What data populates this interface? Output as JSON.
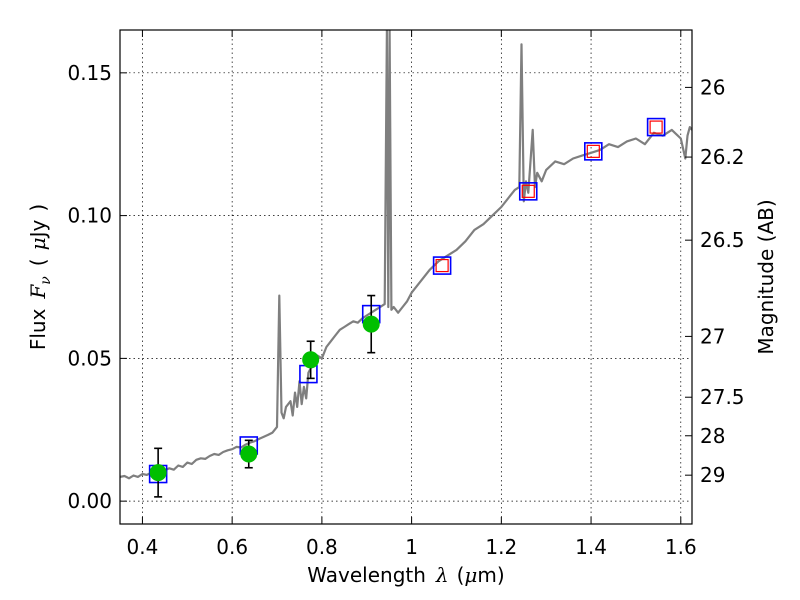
{
  "chart_data": {
    "type": "line",
    "xlabel": {
      "text": "Wavelength",
      "symbol": "λ",
      "unit_open": "(",
      "unit_mu": "μ",
      "unit_rest": "m)"
    },
    "ylabel": {
      "text": "Flux",
      "symbol": "F",
      "sub": "ν",
      "unit_open": "(",
      "unit_mu": "μ",
      "unit_rest": "Jy",
      "unit_close": ")"
    },
    "y2label": "Magnitude (AB)",
    "xlim": [
      0.35,
      1.625
    ],
    "ylim": [
      -0.008,
      0.165
    ],
    "grid": true,
    "x_ticks": [
      0.4,
      0.6,
      0.8,
      1.0,
      1.2,
      1.4,
      1.6
    ],
    "x_tick_labels": [
      "0.4",
      "0.6",
      "0.8",
      "1",
      "1.2",
      "1.4",
      "1.6"
    ],
    "y_ticks": [
      0.0,
      0.05,
      0.1,
      0.15
    ],
    "y_tick_labels": [
      "0.00",
      "0.05",
      "0.10",
      "0.15"
    ],
    "y2_ticks": [
      {
        "label": "26",
        "flux": 0.1449
      },
      {
        "label": "26.2",
        "flux": 0.1205
      },
      {
        "label": "26.5",
        "flux": 0.0914
      },
      {
        "label": "27",
        "flux": 0.0577
      },
      {
        "label": "27.5",
        "flux": 0.0364
      },
      {
        "label": "28",
        "flux": 0.0229
      },
      {
        "label": "29",
        "flux": 0.0091
      }
    ],
    "colors": {
      "spectrum": "#7f7f7f",
      "model_box": "#0000ff",
      "observed": "#00bf00",
      "nir_box": "#ff0000",
      "errorbar": "#000000"
    },
    "series": [
      {
        "kind": "spectrum",
        "x": [
          0.35,
          0.36,
          0.37,
          0.38,
          0.39,
          0.4,
          0.41,
          0.42,
          0.43,
          0.44,
          0.45,
          0.46,
          0.47,
          0.48,
          0.49,
          0.5,
          0.51,
          0.52,
          0.53,
          0.54,
          0.55,
          0.56,
          0.57,
          0.58,
          0.59,
          0.6,
          0.61,
          0.62,
          0.63,
          0.64,
          0.65,
          0.66,
          0.67,
          0.68,
          0.69,
          0.7,
          0.705,
          0.71,
          0.715,
          0.72,
          0.73,
          0.735,
          0.74,
          0.745,
          0.75,
          0.755,
          0.76,
          0.765,
          0.77,
          0.78,
          0.79,
          0.8,
          0.81,
          0.82,
          0.83,
          0.84,
          0.85,
          0.86,
          0.87,
          0.88,
          0.89,
          0.9,
          0.91,
          0.92,
          0.93,
          0.94,
          0.945,
          0.948,
          0.951,
          0.955,
          0.96,
          0.97,
          0.98,
          0.99,
          1.0,
          1.02,
          1.04,
          1.06,
          1.08,
          1.1,
          1.12,
          1.14,
          1.16,
          1.18,
          1.2,
          1.22,
          1.23,
          1.24,
          1.245,
          1.25,
          1.255,
          1.26,
          1.27,
          1.275,
          1.28,
          1.29,
          1.3,
          1.32,
          1.34,
          1.36,
          1.38,
          1.4,
          1.42,
          1.44,
          1.46,
          1.48,
          1.5,
          1.52,
          1.54,
          1.56,
          1.58,
          1.6,
          1.61,
          1.615,
          1.62,
          1.625
        ],
        "y": [
          0.0085,
          0.0088,
          0.008,
          0.009,
          0.0085,
          0.0095,
          0.0092,
          0.01,
          0.0098,
          0.0105,
          0.0108,
          0.0115,
          0.011,
          0.0125,
          0.012,
          0.0135,
          0.013,
          0.0145,
          0.015,
          0.0148,
          0.0158,
          0.0165,
          0.0162,
          0.0172,
          0.0178,
          0.0182,
          0.019,
          0.0188,
          0.0198,
          0.0205,
          0.021,
          0.0218,
          0.0225,
          0.0232,
          0.024,
          0.026,
          0.072,
          0.031,
          0.029,
          0.033,
          0.035,
          0.03,
          0.038,
          0.033,
          0.042,
          0.034,
          0.04,
          0.036,
          0.045,
          0.048,
          0.051,
          0.05,
          0.054,
          0.056,
          0.058,
          0.06,
          0.061,
          0.062,
          0.063,
          0.0625,
          0.064,
          0.065,
          0.066,
          0.067,
          0.068,
          0.069,
          0.165,
          0.068,
          0.165,
          0.067,
          0.068,
          0.066,
          0.068,
          0.07,
          0.073,
          0.077,
          0.081,
          0.084,
          0.086,
          0.088,
          0.091,
          0.095,
          0.097,
          0.1,
          0.103,
          0.107,
          0.109,
          0.11,
          0.16,
          0.105,
          0.112,
          0.108,
          0.13,
          0.11,
          0.115,
          0.112,
          0.116,
          0.119,
          0.118,
          0.12,
          0.121,
          0.122,
          0.123,
          0.125,
          0.124,
          0.126,
          0.127,
          0.125,
          0.129,
          0.128,
          0.13,
          0.127,
          0.12,
          0.128,
          0.131,
          0.13
        ]
      },
      {
        "kind": "model_box",
        "x": [
          0.435,
          0.637,
          0.77,
          0.91,
          1.068,
          1.26,
          1.405,
          1.545
        ],
        "y": [
          0.0095,
          0.0195,
          0.0445,
          0.0655,
          0.0825,
          0.1085,
          0.1225,
          0.131
        ]
      },
      {
        "kind": "nir_box",
        "x": [
          1.068,
          1.26,
          1.405,
          1.545
        ],
        "y": [
          0.0825,
          0.1085,
          0.1225,
          0.131
        ]
      },
      {
        "kind": "observed",
        "x": [
          0.435,
          0.637,
          0.775,
          0.91
        ],
        "y": [
          0.01,
          0.0165,
          0.0495,
          0.062
        ],
        "err": [
          0.0085,
          0.0048,
          0.0065,
          0.01
        ]
      }
    ]
  }
}
